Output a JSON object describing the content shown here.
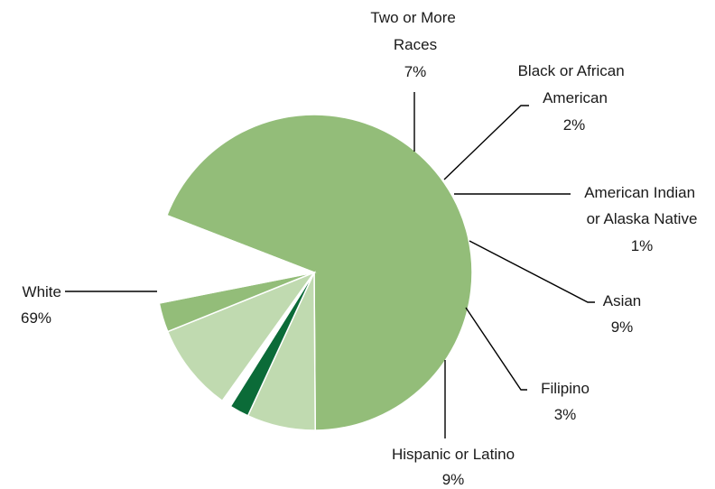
{
  "chart_data": {
    "type": "pie",
    "title": "",
    "legend": "none",
    "slices": [
      {
        "label": "White",
        "value": 69,
        "value_label": "69%",
        "color": "#93bd79"
      },
      {
        "label": "Two or More Races",
        "value": 7,
        "value_label": "7%",
        "color": "#c0dab0"
      },
      {
        "label": "Black or African American",
        "value": 2,
        "value_label": "2%",
        "color": "#0b6b38"
      },
      {
        "label": "American Indian or Alaska Native",
        "value": 1,
        "value_label": "1%",
        "color": "#ffffff"
      },
      {
        "label": "Asian",
        "value": 9,
        "value_label": "9%",
        "color": "#c0dab0"
      },
      {
        "label": "Filipino",
        "value": 3,
        "value_label": "3%",
        "color": "#93bd79"
      },
      {
        "label": "Hispanic or Latino",
        "value": 9,
        "value_label": "9%",
        "color": "#ffffff"
      }
    ]
  }
}
